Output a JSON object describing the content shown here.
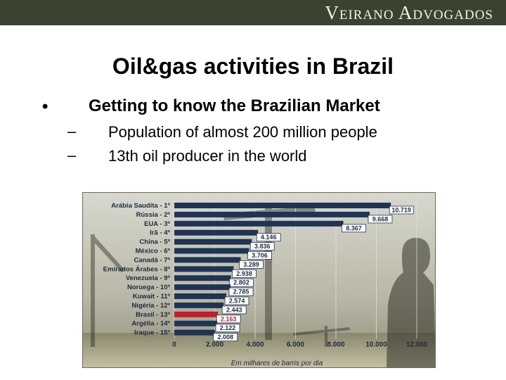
{
  "header": {
    "brand": "Veirano Advogados"
  },
  "slide": {
    "title": "Oil&gas activities in Brazil",
    "bullet_symbol": "•",
    "bullet": "Getting to know the Brazilian Market",
    "dash_symbol": "–",
    "subbullets": [
      "Population of almost 200 million people",
      "13th oil producer in the world"
    ]
  },
  "colors": {
    "bar": "#1e3455",
    "highlight": "#c0202a",
    "background": "#ffffff",
    "header": "#3b4330"
  },
  "chart_data": {
    "type": "bar",
    "orientation": "horizontal",
    "categories": [
      "Arábia Saudita - 1º",
      "Rússia - 2º",
      "EUA - 3º",
      "Irã - 4º",
      "China - 5º",
      "México - 6º",
      "Canadá - 7º",
      "Emirados Árabes - 8º",
      "Venezuela - 9º",
      "Noruega - 10º",
      "Kuwait - 11º",
      "Nigéria - 12º",
      "Brasil - 13º",
      "Argélia - 14º",
      "Iraque - 15º"
    ],
    "values": [
      10719,
      9668,
      8367,
      4146,
      3836,
      3706,
      3289,
      2938,
      2802,
      2785,
      2574,
      2443,
      2163,
      2122,
      2008
    ],
    "value_labels": [
      "10.719",
      "9.668",
      "8.367",
      "4.146",
      "3.836",
      "3.706",
      "3.289",
      "2.938",
      "2.802",
      "2.785",
      "2.574",
      "2.443",
      "2.163",
      "2.122",
      "2.008"
    ],
    "highlight_index": 12,
    "xlim": [
      0,
      12000
    ],
    "x_ticks": [
      0,
      2000,
      4000,
      6000,
      8000,
      10000,
      12000
    ],
    "x_tick_labels": [
      "0",
      "2.000",
      "4.000",
      "6.000",
      "8.000",
      "10.000",
      "12.000"
    ],
    "xlabel": "Em milhares de barris por dia",
    "ylabel": "",
    "title": "",
    "grid": true
  }
}
